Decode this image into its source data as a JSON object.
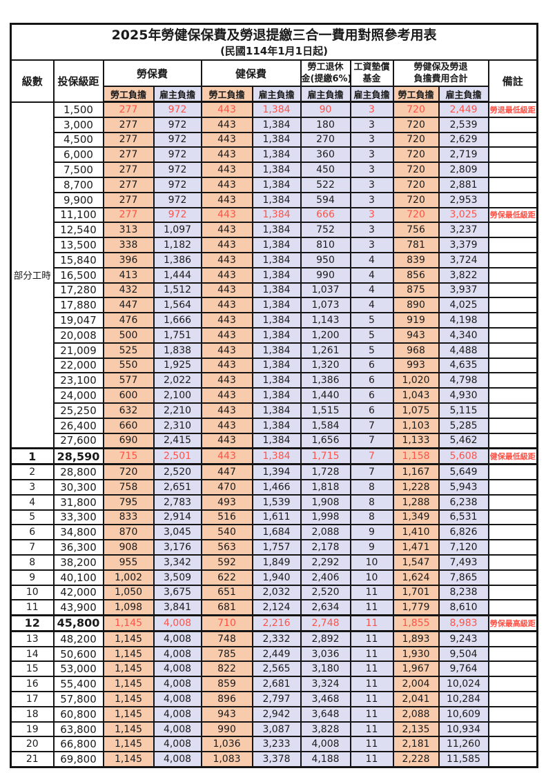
{
  "title": "2025年勞健保保費及勞退提繳三合一費用對照參考用表",
  "subtitle": "(民國114年1月1日起)",
  "colors": {
    "employee_bg": "#F8CBAD",
    "employer_bg": "#DEDEF3",
    "highlight_text": "#FF5247",
    "border": "#141414"
  },
  "header": {
    "level": "級數",
    "bracket": "投保級距",
    "note": "備註",
    "groups": [
      {
        "label": "勞保費"
      },
      {
        "label": "健保費"
      },
      {
        "line1": "勞工退休",
        "line2": "金(提繳6%)"
      },
      {
        "line1": "工資墊償",
        "line2": "基金"
      },
      {
        "line1": "勞健保及勞退",
        "line2": "負擔費用合計"
      }
    ],
    "subs": [
      "勞工負擔",
      "雇主負擔",
      "勞工負擔",
      "雇主負擔",
      "雇主負擔",
      "雇主負擔",
      "勞工負擔",
      "雇主負擔"
    ]
  },
  "table": {
    "group_label": "部分工時",
    "group_span": 23,
    "col_types": [
      "emp",
      "er",
      "emp",
      "er",
      "er",
      "er",
      "emp",
      "er"
    ],
    "rows": [
      [
        "",
        "1,500",
        "277",
        "972",
        "443",
        "1,384",
        "90",
        "3",
        "720",
        "2,449",
        "勞退最低級距",
        1,
        0
      ],
      [
        "",
        "3,000",
        "277",
        "972",
        "443",
        "1,384",
        "180",
        "3",
        "720",
        "2,539",
        "",
        0,
        0
      ],
      [
        "",
        "4,500",
        "277",
        "972",
        "443",
        "1,384",
        "270",
        "3",
        "720",
        "2,629",
        "",
        0,
        0
      ],
      [
        "",
        "6,000",
        "277",
        "972",
        "443",
        "1,384",
        "360",
        "3",
        "720",
        "2,719",
        "",
        0,
        0
      ],
      [
        "",
        "7,500",
        "277",
        "972",
        "443",
        "1,384",
        "450",
        "3",
        "720",
        "2,809",
        "",
        0,
        0
      ],
      [
        "",
        "8,700",
        "277",
        "972",
        "443",
        "1,384",
        "522",
        "3",
        "720",
        "2,881",
        "",
        0,
        0
      ],
      [
        "",
        "9,900",
        "277",
        "972",
        "443",
        "1,384",
        "594",
        "3",
        "720",
        "2,953",
        "",
        0,
        0
      ],
      [
        "",
        "11,100",
        "277",
        "972",
        "443",
        "1,384",
        "666",
        "3",
        "720",
        "3,025",
        "勞保最低級距",
        1,
        0
      ],
      [
        "",
        "12,540",
        "313",
        "1,097",
        "443",
        "1,384",
        "752",
        "3",
        "756",
        "3,237",
        "",
        0,
        0
      ],
      [
        "",
        "13,500",
        "338",
        "1,182",
        "443",
        "1,384",
        "810",
        "3",
        "781",
        "3,379",
        "",
        0,
        0
      ],
      [
        "",
        "15,840",
        "396",
        "1,386",
        "443",
        "1,384",
        "950",
        "4",
        "839",
        "3,724",
        "",
        0,
        0
      ],
      [
        "",
        "16,500",
        "413",
        "1,444",
        "443",
        "1,384",
        "990",
        "4",
        "856",
        "3,822",
        "",
        0,
        0
      ],
      [
        "",
        "17,280",
        "432",
        "1,512",
        "443",
        "1,384",
        "1,037",
        "4",
        "875",
        "3,937",
        "",
        0,
        0
      ],
      [
        "",
        "17,880",
        "447",
        "1,564",
        "443",
        "1,384",
        "1,073",
        "4",
        "890",
        "4,025",
        "",
        0,
        0
      ],
      [
        "",
        "19,047",
        "476",
        "1,666",
        "443",
        "1,384",
        "1,143",
        "5",
        "919",
        "4,198",
        "",
        0,
        0
      ],
      [
        "",
        "20,008",
        "500",
        "1,751",
        "443",
        "1,384",
        "1,200",
        "5",
        "943",
        "4,340",
        "",
        0,
        0
      ],
      [
        "",
        "21,009",
        "525",
        "1,838",
        "443",
        "1,384",
        "1,261",
        "5",
        "968",
        "4,488",
        "",
        0,
        0
      ],
      [
        "",
        "22,000",
        "550",
        "1,925",
        "443",
        "1,384",
        "1,320",
        "6",
        "993",
        "4,635",
        "",
        0,
        0
      ],
      [
        "",
        "23,100",
        "577",
        "2,022",
        "443",
        "1,384",
        "1,386",
        "6",
        "1,020",
        "4,798",
        "",
        0,
        0
      ],
      [
        "",
        "24,000",
        "600",
        "2,100",
        "443",
        "1,384",
        "1,440",
        "6",
        "1,043",
        "4,930",
        "",
        0,
        0
      ],
      [
        "",
        "25,250",
        "632",
        "2,210",
        "443",
        "1,384",
        "1,515",
        "6",
        "1,075",
        "5,115",
        "",
        0,
        0
      ],
      [
        "",
        "26,400",
        "660",
        "2,310",
        "443",
        "1,384",
        "1,584",
        "7",
        "1,103",
        "5,285",
        "",
        0,
        0
      ],
      [
        "",
        "27,600",
        "690",
        "2,415",
        "443",
        "1,384",
        "1,656",
        "7",
        "1,133",
        "5,462",
        "",
        0,
        0
      ],
      [
        "1",
        "28,590",
        "715",
        "2,501",
        "443",
        "1,384",
        "1,715",
        "7",
        "1,158",
        "5,608",
        "健保最低級距",
        1,
        1
      ],
      [
        "2",
        "28,800",
        "720",
        "2,520",
        "447",
        "1,394",
        "1,728",
        "7",
        "1,167",
        "5,649",
        "",
        0,
        0
      ],
      [
        "3",
        "30,300",
        "758",
        "2,651",
        "470",
        "1,466",
        "1,818",
        "8",
        "1,228",
        "5,943",
        "",
        0,
        0
      ],
      [
        "4",
        "31,800",
        "795",
        "2,783",
        "493",
        "1,539",
        "1,908",
        "8",
        "1,288",
        "6,238",
        "",
        0,
        0
      ],
      [
        "5",
        "33,300",
        "833",
        "2,914",
        "516",
        "1,611",
        "1,998",
        "8",
        "1,349",
        "6,531",
        "",
        0,
        0
      ],
      [
        "6",
        "34,800",
        "870",
        "3,045",
        "540",
        "1,684",
        "2,088",
        "9",
        "1,410",
        "6,826",
        "",
        0,
        0
      ],
      [
        "7",
        "36,300",
        "908",
        "3,176",
        "563",
        "1,757",
        "2,178",
        "9",
        "1,471",
        "7,120",
        "",
        0,
        0
      ],
      [
        "8",
        "38,200",
        "955",
        "3,342",
        "592",
        "1,849",
        "2,292",
        "10",
        "1,547",
        "7,493",
        "",
        0,
        0
      ],
      [
        "9",
        "40,100",
        "1,002",
        "3,509",
        "622",
        "1,940",
        "2,406",
        "10",
        "1,624",
        "7,865",
        "",
        0,
        0
      ],
      [
        "10",
        "42,000",
        "1,050",
        "3,675",
        "651",
        "2,032",
        "2,520",
        "11",
        "1,701",
        "8,238",
        "",
        0,
        0
      ],
      [
        "11",
        "43,900",
        "1,098",
        "3,841",
        "681",
        "2,124",
        "2,634",
        "11",
        "1,779",
        "8,610",
        "",
        0,
        0
      ],
      [
        "12",
        "45,800",
        "1,145",
        "4,008",
        "710",
        "2,216",
        "2,748",
        "11",
        "1,855",
        "8,983",
        "勞保最高級距",
        1,
        1
      ],
      [
        "13",
        "48,200",
        "1,145",
        "4,008",
        "748",
        "2,332",
        "2,892",
        "11",
        "1,893",
        "9,243",
        "",
        0,
        0
      ],
      [
        "14",
        "50,600",
        "1,145",
        "4,008",
        "785",
        "2,449",
        "3,036",
        "11",
        "1,930",
        "9,504",
        "",
        0,
        0
      ],
      [
        "15",
        "53,000",
        "1,145",
        "4,008",
        "822",
        "2,565",
        "3,180",
        "11",
        "1,967",
        "9,764",
        "",
        0,
        0
      ],
      [
        "16",
        "55,400",
        "1,145",
        "4,008",
        "859",
        "2,681",
        "3,324",
        "11",
        "2,004",
        "10,024",
        "",
        0,
        0
      ],
      [
        "17",
        "57,800",
        "1,145",
        "4,008",
        "896",
        "2,797",
        "3,468",
        "11",
        "2,041",
        "10,284",
        "",
        0,
        0
      ],
      [
        "18",
        "60,800",
        "1,145",
        "4,008",
        "943",
        "2,942",
        "3,648",
        "11",
        "2,088",
        "10,609",
        "",
        0,
        0
      ],
      [
        "19",
        "63,800",
        "1,145",
        "4,008",
        "990",
        "3,087",
        "3,828",
        "11",
        "2,135",
        "10,934",
        "",
        0,
        0
      ],
      [
        "20",
        "66,800",
        "1,145",
        "4,008",
        "1,036",
        "3,233",
        "4,008",
        "11",
        "2,181",
        "11,260",
        "",
        0,
        0
      ],
      [
        "21",
        "69,800",
        "1,145",
        "4,008",
        "1,083",
        "3,378",
        "4,188",
        "11",
        "2,228",
        "11,585",
        "",
        0,
        0
      ]
    ]
  }
}
